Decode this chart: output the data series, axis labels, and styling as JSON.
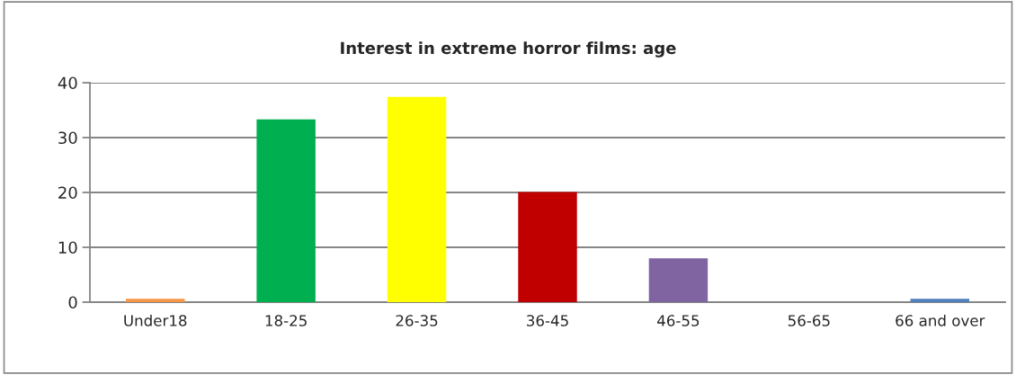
{
  "chart_data": {
    "type": "bar",
    "title": "Interest in extreme horror films: age",
    "categories": [
      "Under18",
      "18-25",
      "26-35",
      "36-45",
      "46-55",
      "56-65",
      "66 and over"
    ],
    "values": [
      0.6,
      33.3,
      37.4,
      20.1,
      8.0,
      0,
      0.6
    ],
    "colors": [
      "#f79646",
      "#00b050",
      "#ffff00",
      "#c00000",
      "#8064a2",
      "#4f81bd",
      "#4f81bd"
    ],
    "ylim": [
      0,
      40
    ],
    "yticks": [
      0,
      10,
      20,
      30,
      40
    ],
    "grid": "y"
  }
}
